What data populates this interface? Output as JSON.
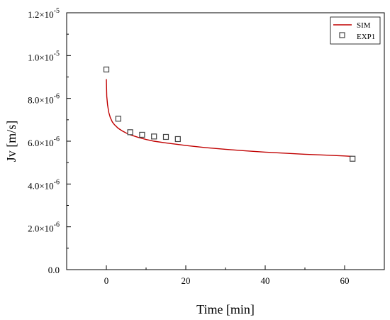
{
  "chart_data": {
    "type": "line",
    "title": "",
    "xlabel": "Time [min]",
    "ylabel": "Jv [m/s]",
    "xlim": [
      -10,
      70
    ],
    "ylim": [
      0,
      1.2e-05
    ],
    "x_ticks": [
      0,
      20,
      40,
      60
    ],
    "x_tick_labels": [
      "0",
      "20",
      "40",
      "60"
    ],
    "y_ticks": [
      0,
      2e-06,
      4e-06,
      6e-06,
      8e-06,
      1e-05,
      1.2e-05
    ],
    "y_tick_labels": [
      {
        "mant": "0.0",
        "exp": ""
      },
      {
        "mant": "2.0×10",
        "exp": "-6"
      },
      {
        "mant": "4.0×10",
        "exp": "-6"
      },
      {
        "mant": "6.0×10",
        "exp": "-6"
      },
      {
        "mant": "8.0×10",
        "exp": "-6"
      },
      {
        "mant": "1.0×10",
        "exp": "-5"
      },
      {
        "mant": "1.2×10",
        "exp": "-5"
      }
    ],
    "grid": false,
    "legend_position": "top-right",
    "series": [
      {
        "name": "SIM",
        "kind": "line",
        "color": "#c00000",
        "x": [
          0,
          0.1,
          0.3,
          0.6,
          1,
          1.5,
          2,
          3,
          4,
          5,
          6,
          8,
          10,
          12,
          15,
          18,
          20,
          25,
          30,
          35,
          40,
          45,
          50,
          55,
          60,
          62
        ],
        "y": [
          8.9e-06,
          8.1e-06,
          7.7e-06,
          7.35e-06,
          7.1e-06,
          6.9e-06,
          6.78e-06,
          6.6e-06,
          6.48e-06,
          6.38e-06,
          6.3e-06,
          6.18e-06,
          6.08e-06,
          6e-06,
          5.92e-06,
          5.85e-06,
          5.8e-06,
          5.7e-06,
          5.62e-06,
          5.55e-06,
          5.49e-06,
          5.44e-06,
          5.39e-06,
          5.35e-06,
          5.31e-06,
          5.29e-06
        ]
      },
      {
        "name": "EXP1",
        "kind": "scatter",
        "marker": "square-open",
        "color": "#444444",
        "x": [
          0,
          3,
          6,
          9,
          12,
          15,
          18,
          62
        ],
        "y": [
          9.35e-06,
          7.05e-06,
          6.42e-06,
          6.3e-06,
          6.22e-06,
          6.2e-06,
          6.1e-06,
          5.18e-06
        ]
      }
    ]
  }
}
